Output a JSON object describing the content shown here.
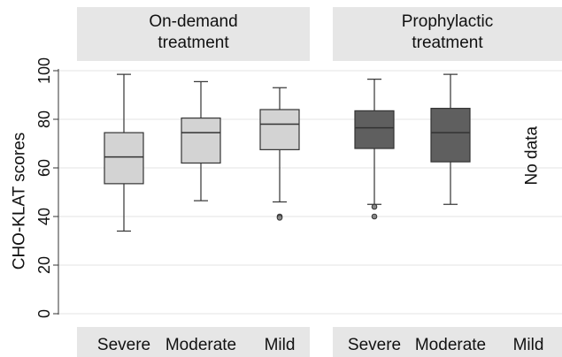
{
  "chart_data": {
    "type": "box",
    "ylabel": "CHO-KLAT scores",
    "ylim": [
      0,
      100
    ],
    "yticks": [
      0,
      20,
      40,
      60,
      80,
      100
    ],
    "grid": true,
    "colors": {
      "on_demand_fill": "#d3d3d3",
      "prophylactic_fill": "#5f5f5f",
      "header_bg": "#e6e6e6",
      "grid": "#e3e3e3"
    },
    "panels": [
      {
        "title_lines": [
          "On-demand",
          "treatment"
        ],
        "fill": "#d3d3d3",
        "groups": [
          {
            "category": "Severe",
            "whisker_low": 34,
            "q1": 53.5,
            "median": 64.5,
            "q3": 74.5,
            "whisker_high": 98.5,
            "outliers": []
          },
          {
            "category": "Moderate",
            "whisker_low": 46.5,
            "q1": 62,
            "median": 74.5,
            "q3": 80.5,
            "whisker_high": 95.5,
            "outliers": []
          },
          {
            "category": "Mild",
            "whisker_low": 46,
            "q1": 67.5,
            "median": 78,
            "q3": 84,
            "whisker_high": 93,
            "outliers": [
              40,
              39.5
            ]
          }
        ]
      },
      {
        "title_lines": [
          "Prophylactic",
          "treatment"
        ],
        "fill": "#5f5f5f",
        "groups": [
          {
            "category": "Severe",
            "whisker_low": 45,
            "q1": 68,
            "median": 76.5,
            "q3": 83.5,
            "whisker_high": 96.5,
            "outliers": [
              44,
              40
            ]
          },
          {
            "category": "Moderate",
            "whisker_low": 45,
            "q1": 62.5,
            "median": 74.5,
            "q3": 84.5,
            "whisker_high": 98.5,
            "outliers": []
          },
          {
            "category": "Mild",
            "no_data_label": "No data"
          }
        ]
      }
    ]
  }
}
